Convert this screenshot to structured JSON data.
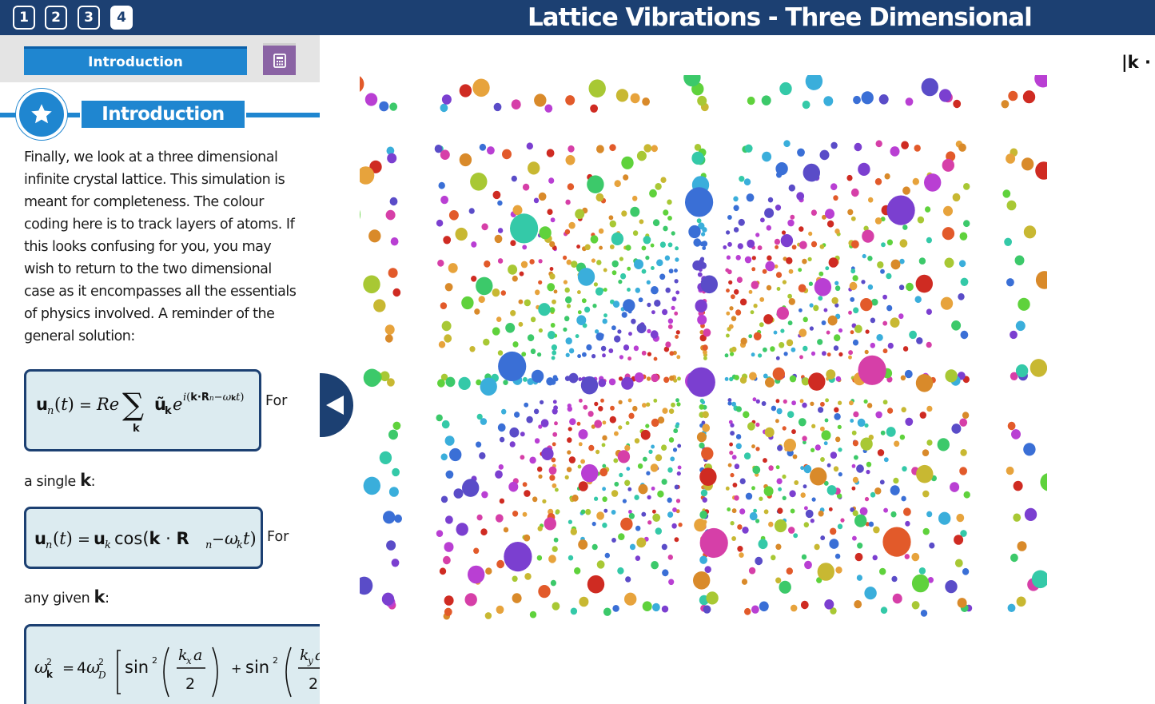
{
  "header": {
    "title": "Lattice Vibrations - Three Dimensional",
    "pages": [
      "1",
      "2",
      "3",
      "4"
    ],
    "active_page": "4"
  },
  "sidebar": {
    "section_select": "Introduction",
    "calculator_icon": "calculator-icon",
    "section_icon": "star-icon",
    "section_heading": "Introduction",
    "intro_text": "Finally, we look at a three dimensional infinite crystal lattice. This simulation is meant for completeness. The colour coding here is to track layers of atoms. If this looks confusing for you, you may wish to return to the two dimensional case as it encompasses all the essentials of physics involved. A reminder of the general solution:",
    "for_1": "For",
    "line_single_prefix": "a single ",
    "line_single_k": "k",
    "line_single_suffix": ":",
    "for_2": "For",
    "line_any_prefix": "any given ",
    "line_any_k": "k",
    "line_any_suffix": ":",
    "collapse_icon": "chevron-left-icon"
  },
  "simulation": {
    "readout": "|k · u",
    "layer_colors": [
      "#cf2b22",
      "#e25a2a",
      "#d98a2a",
      "#e7a33c",
      "#c8b832",
      "#a8c834",
      "#5fd23c",
      "#3cc96a",
      "#34c9a8",
      "#3aaedb",
      "#3a6fd6",
      "#5a4cc8",
      "#7b3fd0",
      "#b93fd3",
      "#d63fa8"
    ]
  }
}
